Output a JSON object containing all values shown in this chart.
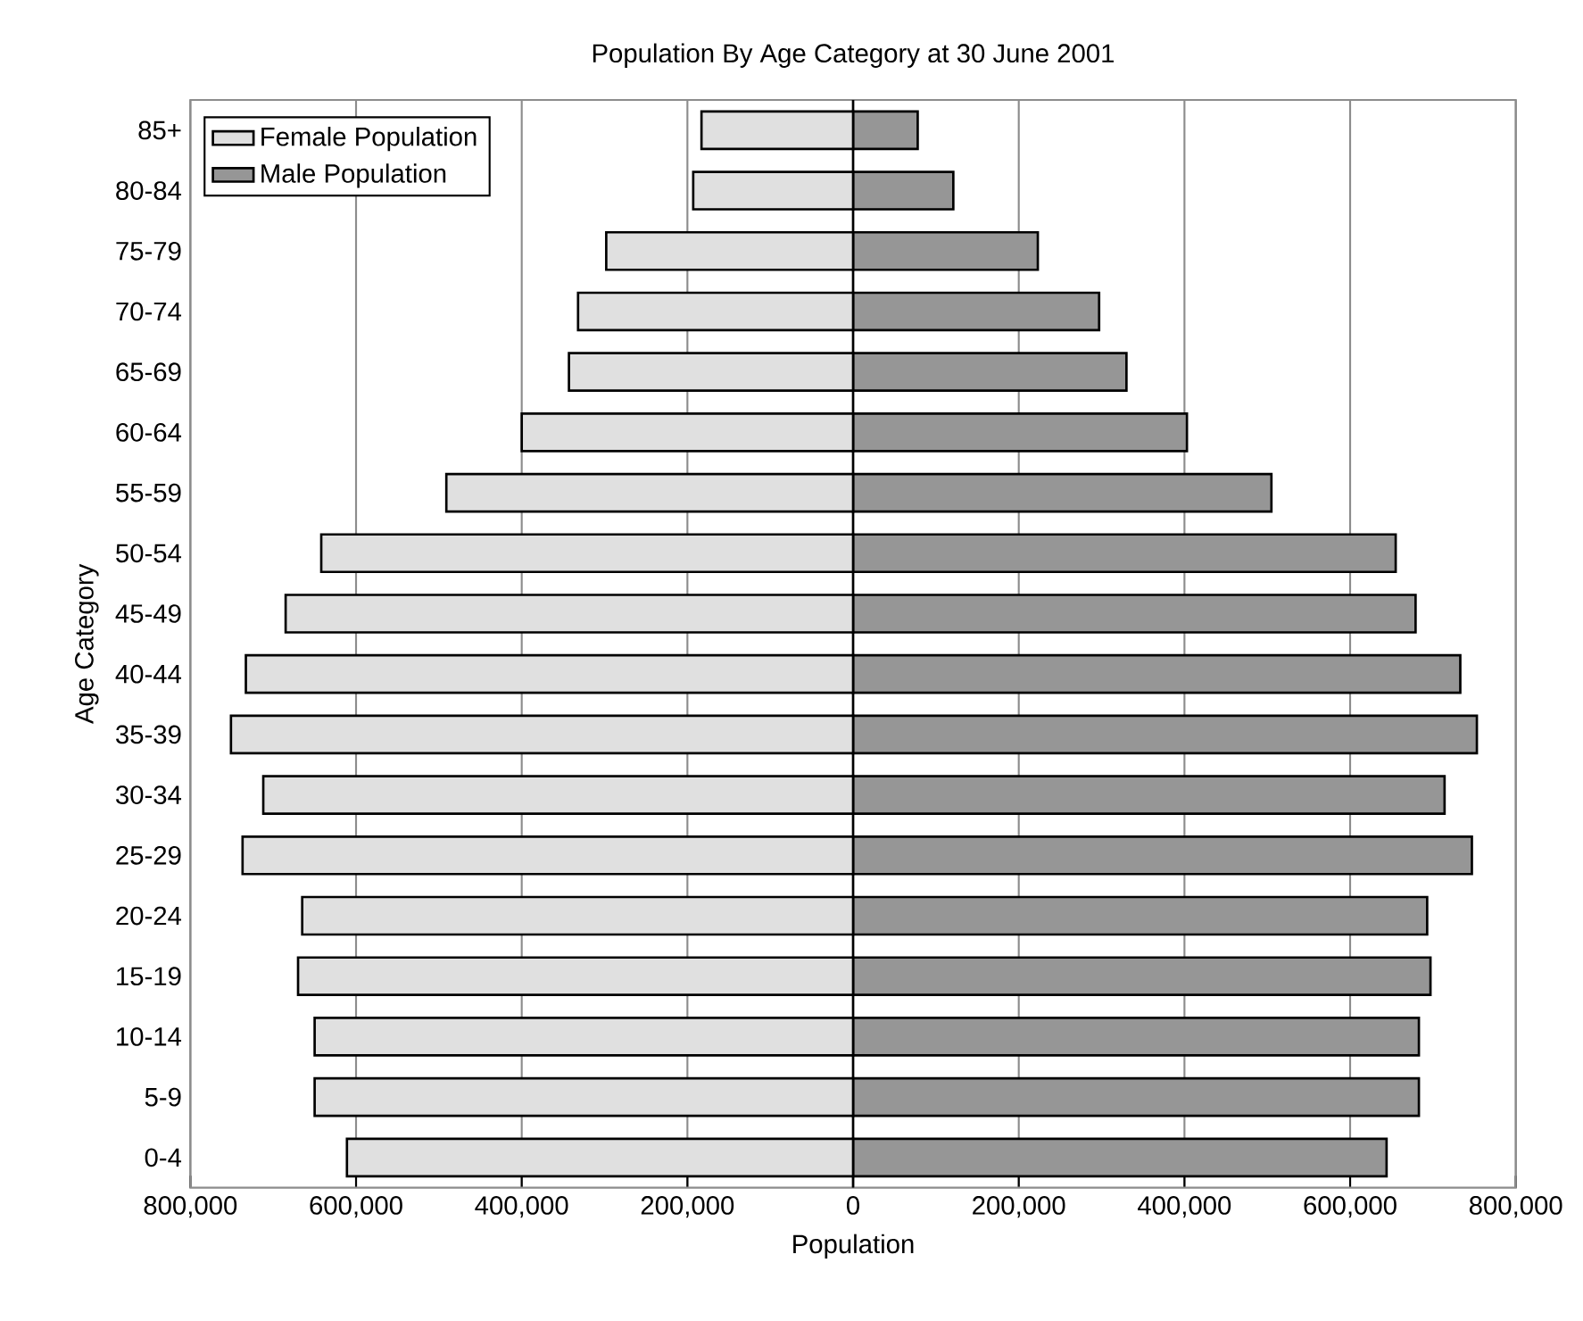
{
  "chart_data": {
    "type": "bar",
    "orientation": "horizontal",
    "title": "Population By Age Category at 30 June 2001",
    "xlabel": "Population",
    "ylabel": "Age Category",
    "categories": [
      "85+",
      "80-84",
      "75-79",
      "70-74",
      "65-69",
      "60-64",
      "55-59",
      "50-54",
      "45-49",
      "40-44",
      "35-39",
      "30-34",
      "25-29",
      "20-24",
      "15-19",
      "10-14",
      "5-9",
      "0-4"
    ],
    "series": [
      {
        "name": "Female Population",
        "color": "#e0e0e0",
        "values": [
          -183000,
          -193000,
          -298000,
          -332000,
          -343000,
          -400000,
          -491000,
          -642000,
          -685000,
          -733000,
          -751000,
          -712000,
          -737000,
          -665000,
          -670000,
          -650000,
          -650000,
          -611000
        ]
      },
      {
        "name": "Male Population",
        "color": "#969696",
        "values": [
          78000,
          121000,
          223000,
          297000,
          330000,
          403000,
          505000,
          655000,
          679000,
          733000,
          753000,
          714000,
          747000,
          693000,
          697000,
          683000,
          683000,
          644000
        ]
      }
    ],
    "xlim": [
      -800000,
      800000
    ],
    "xticks": [
      {
        "value": -800000,
        "label": "800,000"
      },
      {
        "value": -600000,
        "label": "600,000"
      },
      {
        "value": -400000,
        "label": "400,000"
      },
      {
        "value": -200000,
        "label": "200,000"
      },
      0,
      {
        "value": 200000,
        "label": "200,000"
      },
      {
        "value": 400000,
        "label": "400,000"
      },
      {
        "value": 600000,
        "label": "600,000"
      },
      {
        "value": 800000,
        "label": "800,000"
      }
    ],
    "grid": "x",
    "legend": "top left",
    "stacked": true
  }
}
